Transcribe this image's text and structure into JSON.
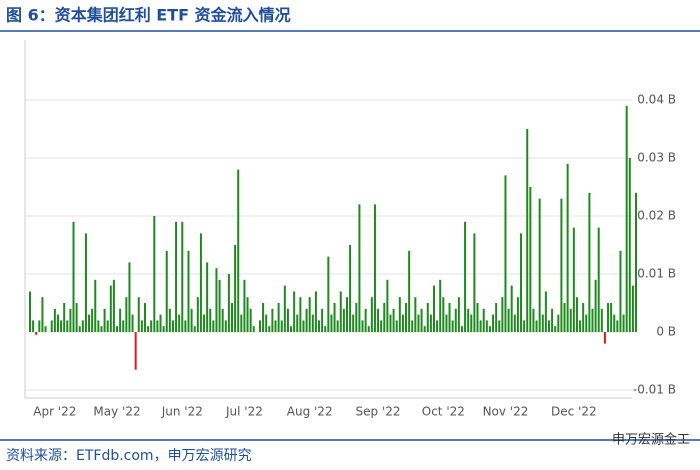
{
  "chart_data": {
    "type": "bar",
    "title": "图 6：资本集团红利 ETF 资金流入情况",
    "source": "资料来源：ETFdb.com，申万宏源研究",
    "watermark": "申万宏源金工",
    "color": "#1e8a1e",
    "negative_color": "#e0191f",
    "ylim": [
      -0.011,
      0.05
    ],
    "yticks": [
      {
        "value": -0.01,
        "label": "-0.01 B"
      },
      {
        "value": 0,
        "label": "0 B"
      },
      {
        "value": 0.01,
        "label": "0.01 B"
      },
      {
        "value": 0.02,
        "label": "0.02 B"
      },
      {
        "value": 0.03,
        "label": "0.03 B"
      },
      {
        "value": 0.04,
        "label": "0.04 B"
      }
    ],
    "grid": true,
    "categories": [
      null,
      null,
      null,
      null,
      null,
      null,
      null,
      null,
      "Apr '22",
      null,
      null,
      null,
      null,
      null,
      null,
      null,
      null,
      null,
      null,
      null,
      null,
      null,
      null,
      null,
      null,
      null,
      null,
      null,
      "May '22",
      null,
      null,
      null,
      null,
      null,
      null,
      null,
      null,
      null,
      null,
      null,
      null,
      null,
      null,
      null,
      null,
      null,
      null,
      null,
      null,
      "Jun '22",
      null,
      null,
      null,
      null,
      null,
      null,
      null,
      null,
      null,
      null,
      null,
      null,
      null,
      null,
      null,
      null,
      null,
      null,
      null,
      "Jul '22",
      null,
      null,
      null,
      null,
      null,
      null,
      null,
      null,
      null,
      null,
      null,
      null,
      null,
      null,
      null,
      null,
      null,
      null,
      null,
      null,
      "Aug '22",
      null,
      null,
      null,
      null,
      null,
      null,
      null,
      null,
      null,
      null,
      null,
      null,
      null,
      null,
      null,
      null,
      null,
      null,
      null,
      null,
      null,
      "Sep '22",
      null,
      null,
      null,
      null,
      null,
      null,
      null,
      null,
      null,
      null,
      null,
      null,
      null,
      null,
      null,
      null,
      null,
      null,
      null,
      null,
      "Oct '22",
      null,
      null,
      null,
      null,
      null,
      null,
      null,
      null,
      null,
      null,
      null,
      null,
      null,
      null,
      null,
      null,
      null,
      null,
      null,
      "Nov '22",
      null,
      null,
      null,
      null,
      null,
      null,
      null,
      null,
      null,
      null,
      null,
      null,
      null,
      null,
      null,
      null,
      null,
      null,
      null,
      null,
      null,
      "Dec '22",
      null,
      null,
      null,
      null,
      null,
      null,
      null,
      null,
      null,
      null,
      null,
      null,
      null,
      null,
      null,
      null,
      null,
      null,
      null,
      null
    ],
    "values": [
      0.007,
      0.002,
      -0.0005,
      0.002,
      0.006,
      0.001,
      0,
      0.002,
      0.004,
      0.003,
      0.002,
      0.005,
      0.002,
      0.004,
      0.019,
      0.005,
      0.001,
      0.002,
      0.017,
      0.003,
      0.004,
      0.009,
      0.002,
      0.001,
      0.004,
      0.002,
      0.008,
      0.009,
      0.001,
      0.004,
      0.002,
      0.006,
      0.012,
      0.003,
      -0.0065,
      0.006,
      0.002,
      0.005,
      0.001,
      0.002,
      0.02,
      0.002,
      0.003,
      0.001,
      0.014,
      0.004,
      0.002,
      0.019,
      0.003,
      0.019,
      0.002,
      0.014,
      0.004,
      0.001,
      0.006,
      0.017,
      0.003,
      0.012,
      0.004,
      0.002,
      0.011,
      0.009,
      0.004,
      0.002,
      0.01,
      0.005,
      0.015,
      0.028,
      0.003,
      0.009,
      0.006,
      0.004,
      0.001,
      0,
      0.002,
      0.005,
      0.003,
      0.001,
      0.004,
      0.002,
      0.005,
      0.002,
      0.008,
      0.004,
      0.001,
      0.007,
      0.003,
      0.006,
      0.002,
      0.004,
      0.006,
      0.003,
      0.007,
      0.002,
      0.004,
      0.001,
      0.013,
      0.003,
      0.005,
      0.002,
      0.007,
      0.004,
      0.006,
      0.015,
      0.003,
      0.005,
      0.022,
      0.002,
      0.004,
      0.001,
      0.006,
      0.022,
      0.004,
      0.002,
      0.005,
      0.009,
      0.003,
      0.004,
      0.002,
      0.006,
      0.003,
      0.005,
      0.014,
      0.002,
      0.006,
      0.003,
      0.004,
      0.001,
      0.005,
      0.003,
      0.008,
      0.002,
      0.009,
      0.006,
      0.003,
      0.005,
      0.002,
      0.004,
      0.006,
      0.001,
      0.019,
      0.004,
      0.003,
      0.017,
      0.005,
      0.002,
      0.004,
      0.002,
      0.001,
      0.003,
      0.005,
      0.002,
      0.006,
      0.027,
      0.004,
      0.008,
      0.003,
      0.006,
      0.017,
      0.002,
      0.035,
      0.025,
      0.004,
      0.002,
      0.023,
      0.003,
      0.007,
      0.002,
      0.004,
      0.001,
      0.003,
      0.023,
      0.005,
      0.029,
      0.004,
      0.018,
      0.006,
      0.002,
      0.005,
      0.003,
      0.024,
      0.004,
      0.009,
      0.018,
      0.004,
      -0.002,
      0.005,
      0.005,
      0.003,
      0.002,
      0.014,
      0.003,
      0.039,
      0.03,
      0.008,
      0.024
    ]
  }
}
